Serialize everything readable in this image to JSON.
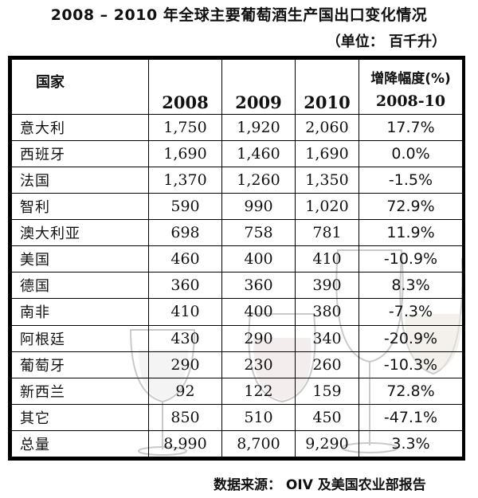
{
  "title": "2008 – 2010 年全球主要葡萄酒生产国出口变化情况",
  "unit": "（单位： 百千升）",
  "table": {
    "headers": {
      "country": "国家",
      "y2008": "2008",
      "y2009": "2009",
      "y2010": "2010",
      "change_line1": "增降幅度(%)",
      "change_line2": "2008-10"
    },
    "rows": [
      {
        "country": "意大利",
        "y2008": "1,750",
        "y2009": "1,920",
        "y2010": "2,060",
        "change": "17.7%"
      },
      {
        "country": "西班牙",
        "y2008": "1,690",
        "y2009": "1,460",
        "y2010": "1,690",
        "change": "0.0%"
      },
      {
        "country": "法国",
        "y2008": "1,370",
        "y2009": "1,260",
        "y2010": "1,350",
        "change": "-1.5%"
      },
      {
        "country": "智利",
        "y2008": "590",
        "y2009": "990",
        "y2010": "1,020",
        "change": "72.9%"
      },
      {
        "country": "澳大利亚",
        "y2008": "698",
        "y2009": "758",
        "y2010": "781",
        "change": "11.9%"
      },
      {
        "country": "美国",
        "y2008": "460",
        "y2009": "400",
        "y2010": "410",
        "change": "-10.9%"
      },
      {
        "country": "德国",
        "y2008": "360",
        "y2009": "360",
        "y2010": "390",
        "change": "8.3%"
      },
      {
        "country": "南非",
        "y2008": "410",
        "y2009": "400",
        "y2010": "380",
        "change": "-7.3%"
      },
      {
        "country": "阿根廷",
        "y2008": "430",
        "y2009": "290",
        "y2010": "340",
        "change": "-20.9%"
      },
      {
        "country": "葡萄牙",
        "y2008": "290",
        "y2009": "230",
        "y2010": "260",
        "change": "-10.3%"
      },
      {
        "country": "新西兰",
        "y2008": "92",
        "y2009": "122",
        "y2010": "159",
        "change": "72.8%"
      },
      {
        "country": "其它",
        "y2008": "850",
        "y2009": "510",
        "y2010": "450",
        "change": "-47.1%"
      },
      {
        "country": "总量",
        "y2008": "8,990",
        "y2009": "8,700",
        "y2010": "9,290",
        "change": "3.3%"
      }
    ]
  },
  "source": "数据来源： OIV 及美国农业部报告"
}
